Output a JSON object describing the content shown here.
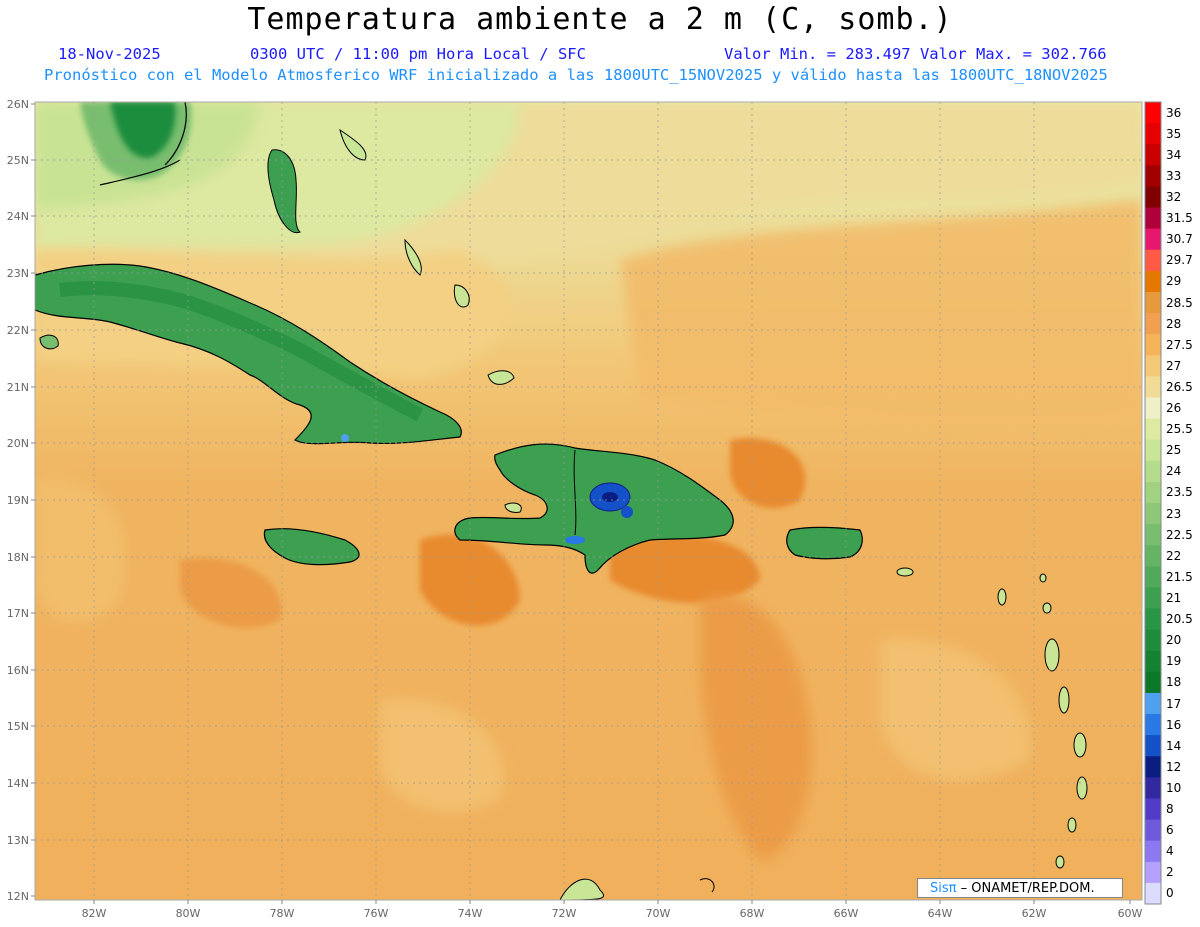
{
  "title": "Temperatura ambiente a 2 m (C, somb.)",
  "header": {
    "date": "18-Nov-2025",
    "time": "0300 UTC / 11:00 pm Hora Local / SFC",
    "minmax": "Valor Min. = 283.497  Valor Max. = 302.766",
    "model": "Pronóstico con el Modelo Atmosferico WRF inicializado a las 1800UTC_15NOV2025 y válido hasta las  1800UTC_18NOV2025"
  },
  "axes": {
    "lat_labels": [
      "26N",
      "25N",
      "24N",
      "23N",
      "22N",
      "21N",
      "20N",
      "19N",
      "18N",
      "17N",
      "16N",
      "15N",
      "14N",
      "13N",
      "12N"
    ],
    "lon_labels": [
      "82W",
      "80W",
      "78W",
      "76W",
      "74W",
      "72W",
      "70W",
      "68W",
      "66W",
      "64W",
      "62W",
      "60W"
    ]
  },
  "colorbar": {
    "labels": [
      "36",
      "35",
      "34",
      "33",
      "32",
      "31.5",
      "30.7",
      "29.7",
      "29",
      "28.5",
      "28",
      "27.5",
      "27",
      "26.5",
      "26",
      "25.5",
      "25",
      "24",
      "23.5",
      "23",
      "22.5",
      "22",
      "21.5",
      "21",
      "20.5",
      "20",
      "19",
      "18",
      "17",
      "16",
      "14",
      "12",
      "10",
      "8",
      "6",
      "4",
      "2",
      "0"
    ],
    "colors": [
      "#ff0000",
      "#e60000",
      "#c80000",
      "#a00000",
      "#800000",
      "#b0003c",
      "#e6186e",
      "#ff5a46",
      "#e57800",
      "#e69a3c",
      "#f0a050",
      "#f5b45a",
      "#f5c878",
      "#f0dc96",
      "#f0f0c8",
      "#dceba0",
      "#c8e696",
      "#b4dc8c",
      "#a0d282",
      "#8cc878",
      "#78be6e",
      "#64b464",
      "#50aa5a",
      "#3ca050",
      "#289646",
      "#1e8c3c",
      "#148232",
      "#0a7828",
      "#50a0f0",
      "#2878e6",
      "#1450c8",
      "#0a1e82",
      "#3228a0",
      "#503cc8",
      "#6e5adc",
      "#8c78f0",
      "#b4a0ff",
      "#dcdcff"
    ]
  },
  "credit": {
    "brand": "Sisπ",
    "text": " – ONAMET/REP.DOM."
  }
}
